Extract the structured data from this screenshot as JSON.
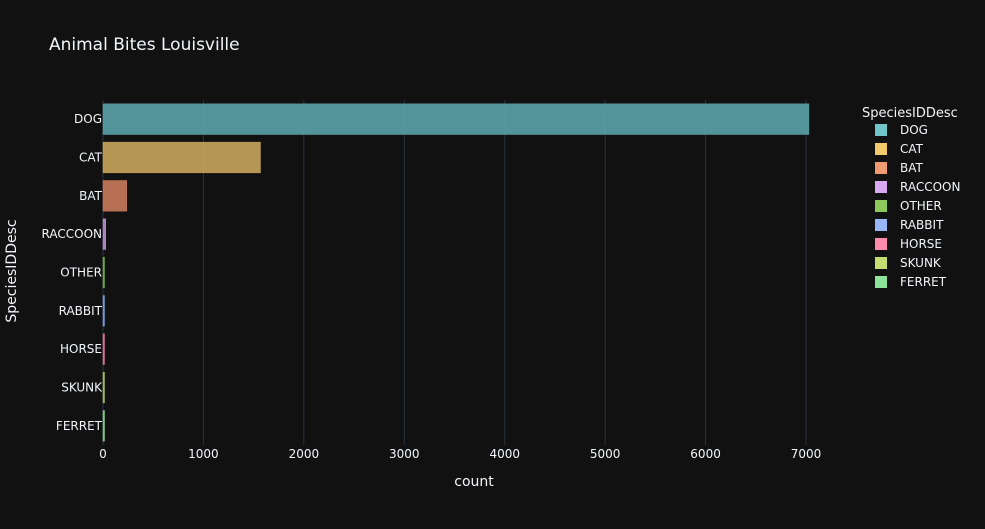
{
  "chart_data": {
    "type": "bar",
    "orientation": "horizontal",
    "title": "Animal Bites Louisville",
    "xlabel": "count",
    "ylabel": "SpeciesIDDesc",
    "xlim": [
      0,
      7300
    ],
    "xticks": [
      0,
      1000,
      2000,
      3000,
      4000,
      5000,
      6000,
      7000
    ],
    "xtick_labels": [
      "0",
      "1000",
      "2000",
      "3000",
      "4000",
      "5000",
      "6000",
      "7000"
    ],
    "categories": [
      "DOG",
      "CAT",
      "BAT",
      "RACCOON",
      "OTHER",
      "RABBIT",
      "HORSE",
      "SKUNK",
      "FERRET"
    ],
    "values": [
      7029,
      1568,
      237,
      27,
      11,
      3,
      2,
      1,
      1
    ],
    "colors": [
      "#636efa",
      "#636efa",
      "#636efa",
      "#636efa",
      "#636efa",
      "#636efa",
      "#636efa",
      "#636efa",
      "#636efa"
    ],
    "bar_colors": [
      "#5aa3a8",
      "#c9a55b",
      "#c97a5b",
      "#b88fd0",
      "#7ab04e",
      "#7f9fd9",
      "#e27a9a",
      "#a9c45e",
      "#8fd08f"
    ],
    "grid": true,
    "legend": {
      "title": "SpeciesIDDesc",
      "placement": "right",
      "entries": [
        "DOG",
        "CAT",
        "BAT",
        "RACCOON",
        "OTHER",
        "RABBIT",
        "HORSE",
        "SKUNK",
        "FERRET"
      ],
      "colors": [
        "#6fc5ca",
        "#f2c96a",
        "#f09a72",
        "#d9a8f2",
        "#8cc85a",
        "#98b6f5",
        "#ff8bab",
        "#c4dc70",
        "#8ee29a"
      ]
    },
    "theme": {
      "background": "#111111",
      "text": "#f2f5fa",
      "grid": "#283442"
    }
  }
}
